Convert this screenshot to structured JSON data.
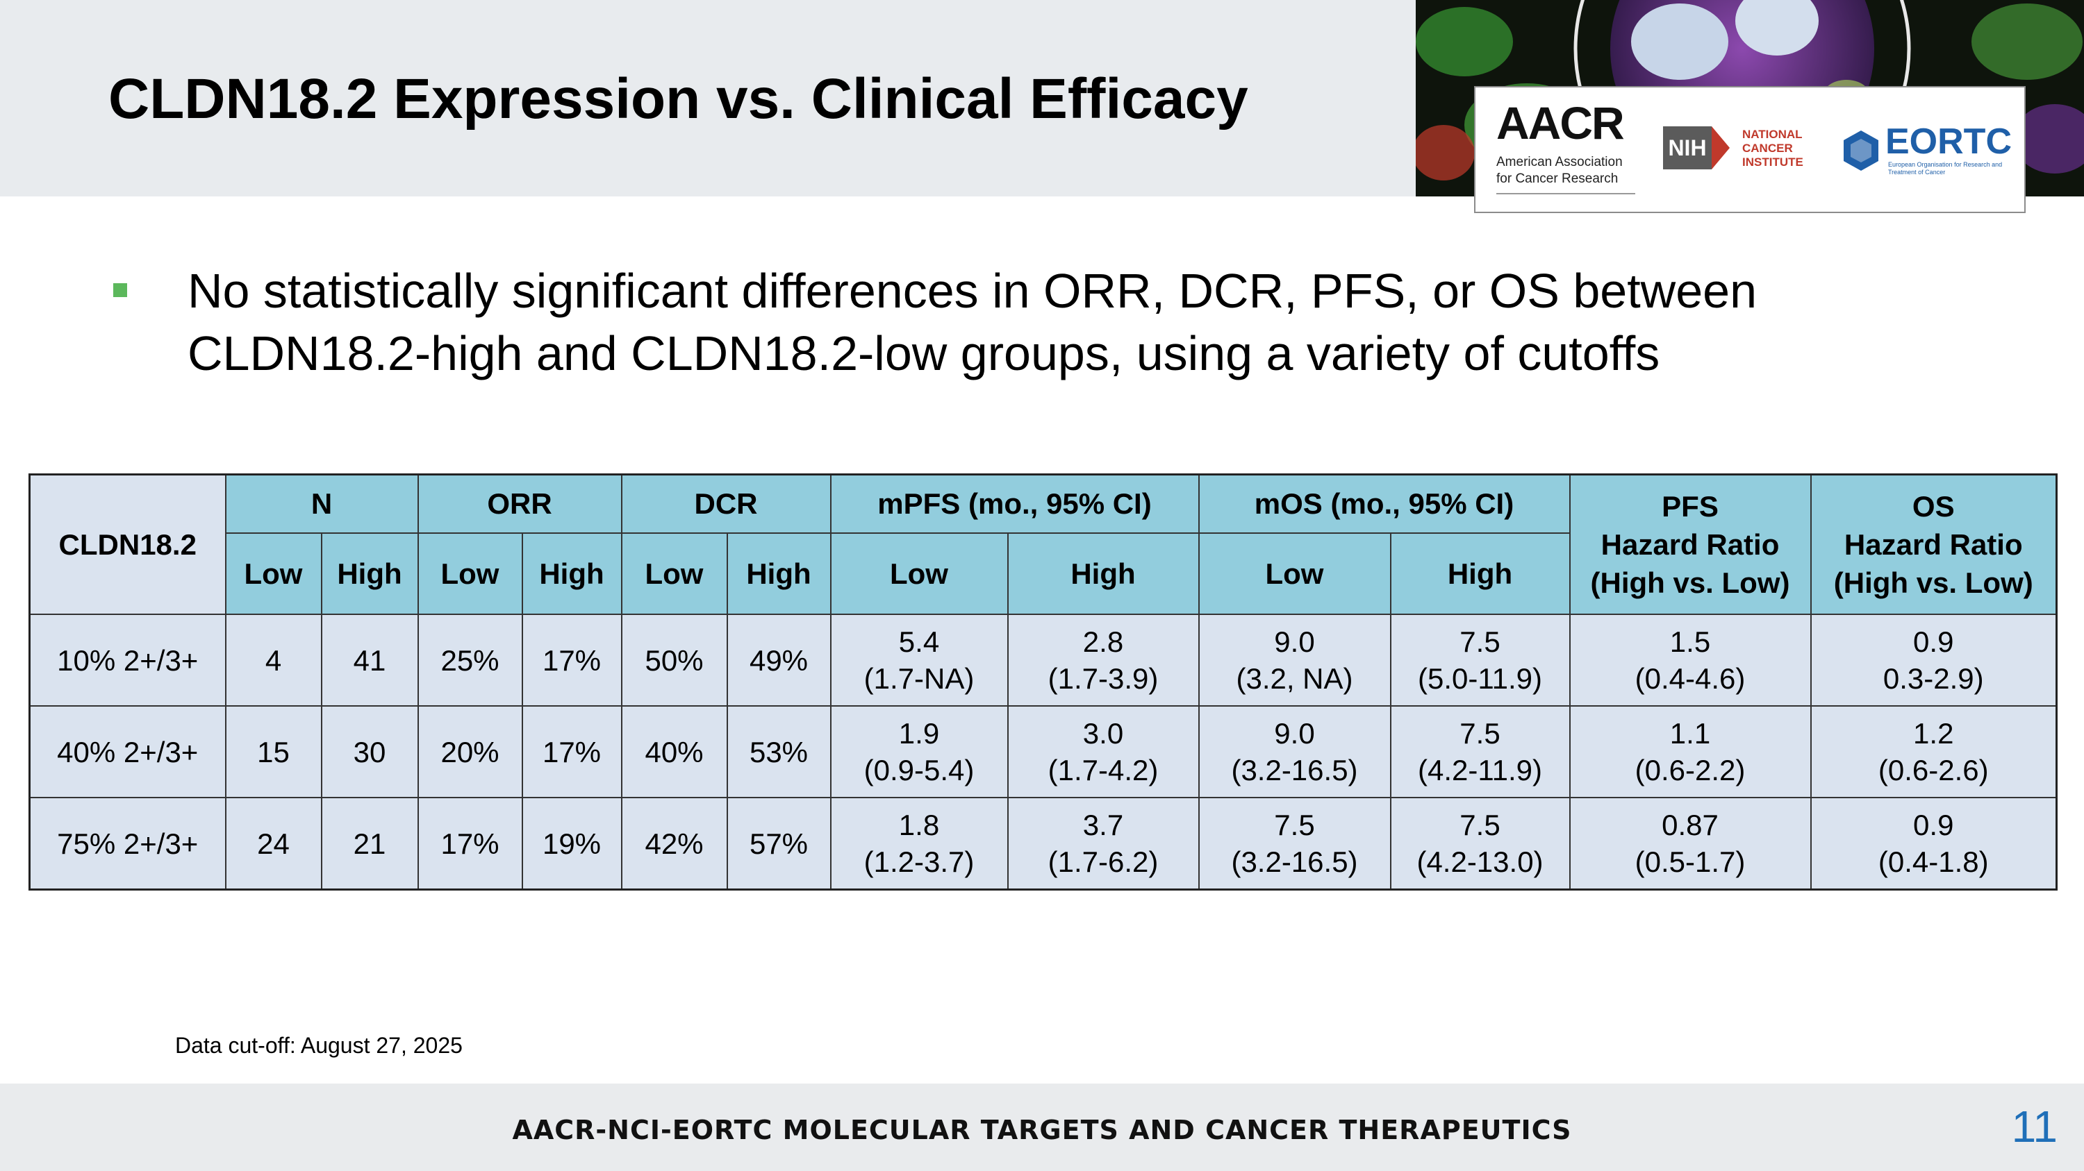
{
  "slide": {
    "title": "CLDN18.2 Expression vs. Clinical Efficacy",
    "bullet": "No statistically significant differences in ORR, DCR, PFS, or OS between CLDN18.2-high and CLDN18.2-low groups, using a variety of cutoffs",
    "footnote": "Data cut-off: August 27, 2025",
    "page_number": "11"
  },
  "logos": {
    "aacr_wordmark": "AACR",
    "aacr_sub_line1": "American Association",
    "aacr_sub_line2": "for Cancer Research",
    "nih": "NIH",
    "nci": "NATIONAL CANCER INSTITUTE",
    "eortc": "EORTC",
    "eortc_sub": "European Organisation for Research and Treatment of Cancer"
  },
  "footer": {
    "text": "AACR-NCI-EORTC MOLECULAR TARGETS AND CANCER THERAPEUTICS"
  },
  "colors": {
    "header_fill": "#92cddd",
    "body_fill": "#dae3ef",
    "bullet": "#5cb85c",
    "page_number": "#1f6fb8"
  },
  "table": {
    "corner": "CLDN18.2",
    "group_headers": {
      "n": "N",
      "orr": "ORR",
      "dcr": "DCR",
      "mpfs": "mPFS (mo., 95% CI)",
      "mos": "mOS (mo., 95% CI)"
    },
    "pfs_hr_header": {
      "l1": "PFS",
      "l2": "Hazard Ratio",
      "l3": "(High vs. Low)"
    },
    "os_hr_header": {
      "l1": "OS",
      "l2": "Hazard Ratio",
      "l3": "(High vs. Low)"
    },
    "sub_headers": [
      "Low",
      "High",
      "Low",
      "High",
      "Low",
      "High",
      "Low",
      "High",
      "Low",
      "High"
    ],
    "rows": [
      {
        "cutoff": "10% 2+/3+",
        "n_low": "4",
        "n_high": "41",
        "orr_low": "25%",
        "orr_high": "17%",
        "dcr_low": "50%",
        "dcr_high": "49%",
        "mpfs_low": {
          "v": "5.4",
          "ci": "(1.7-NA)"
        },
        "mpfs_high": {
          "v": "2.8",
          "ci": "(1.7-3.9)"
        },
        "mos_low": {
          "v": "9.0",
          "ci": "(3.2, NA)"
        },
        "mos_high": {
          "v": "7.5",
          "ci": "(5.0-11.9)"
        },
        "pfs_hr": {
          "v": "1.5",
          "ci": "(0.4-4.6)"
        },
        "os_hr": {
          "v": "0.9",
          "ci": "0.3-2.9)"
        }
      },
      {
        "cutoff": "40% 2+/3+",
        "n_low": "15",
        "n_high": "30",
        "orr_low": "20%",
        "orr_high": "17%",
        "dcr_low": "40%",
        "dcr_high": "53%",
        "mpfs_low": {
          "v": "1.9",
          "ci": "(0.9-5.4)"
        },
        "mpfs_high": {
          "v": "3.0",
          "ci": "(1.7-4.2)"
        },
        "mos_low": {
          "v": "9.0",
          "ci": "(3.2-16.5)"
        },
        "mos_high": {
          "v": "7.5",
          "ci": "(4.2-11.9)"
        },
        "pfs_hr": {
          "v": "1.1",
          "ci": "(0.6-2.2)"
        },
        "os_hr": {
          "v": "1.2",
          "ci": "(0.6-2.6)"
        }
      },
      {
        "cutoff": "75% 2+/3+",
        "n_low": "24",
        "n_high": "21",
        "orr_low": "17%",
        "orr_high": "19%",
        "dcr_low": "42%",
        "dcr_high": "57%",
        "mpfs_low": {
          "v": "1.8",
          "ci": "(1.2-3.7)"
        },
        "mpfs_high": {
          "v": "3.7",
          "ci": "(1.7-6.2)"
        },
        "mos_low": {
          "v": "7.5",
          "ci": "(3.2-16.5)"
        },
        "mos_high": {
          "v": "7.5",
          "ci": "(4.2-13.0)"
        },
        "pfs_hr": {
          "v": "0.87",
          "ci": "(0.5-1.7)"
        },
        "os_hr": {
          "v": "0.9",
          "ci": "(0.4-1.8)"
        }
      }
    ]
  }
}
